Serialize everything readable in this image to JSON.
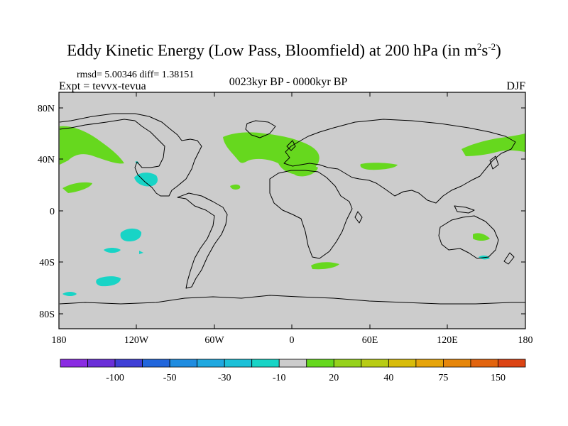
{
  "title": {
    "main": "Eddy Kinetic Energy (Low Pass, Bloomfield) at 200 hPa (in m",
    "sup1": "2",
    "mid": "s",
    "sup2": "-2",
    "end": ")"
  },
  "stats": "rmsd= 5.00346 diff= 1.38151",
  "experiment": "Expt = tevvx-tevua",
  "period": "0023kyr BP - 0000kyr BP",
  "season": "DJF",
  "lat_ticks": [
    "80N",
    "40N",
    "0",
    "40S",
    "80S"
  ],
  "lon_ticks": [
    "180",
    "120W",
    "60W",
    "0",
    "60E",
    "120E",
    "180"
  ],
  "colorbar": {
    "colors": [
      "#8a2be2",
      "#6a2fd8",
      "#3f3fd6",
      "#2166dc",
      "#1f8ce0",
      "#1fa8e0",
      "#1cc0d8",
      "#18d4c6",
      "#cccccc",
      "#66d81e",
      "#96d21c",
      "#b8cc14",
      "#d8bc0a",
      "#e6a40a",
      "#e6860a",
      "#e2640e",
      "#dc4414"
    ],
    "labels": [
      "-100",
      "-50",
      "-30",
      "-10",
      "20",
      "40",
      "75",
      "150"
    ]
  },
  "colors": {
    "ocean_background": "#cccccc",
    "positive_anomaly": "#66d81e",
    "negative_anomaly": "#18d4c6"
  }
}
